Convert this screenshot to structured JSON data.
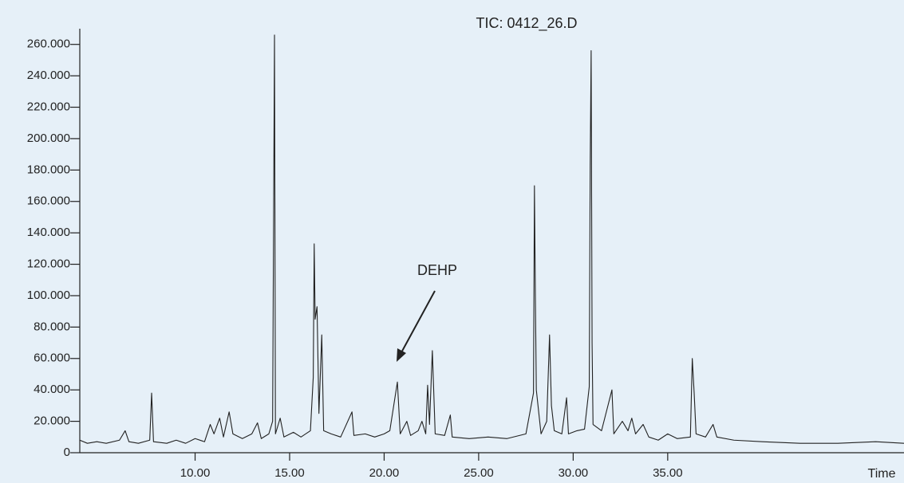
{
  "chart_data": {
    "type": "line",
    "title": "TIC: 0412_26.D",
    "xlabel": "Time",
    "annotation": "DEHP",
    "color": "#222222",
    "xlim": [
      3.9,
      47.5
    ],
    "ylim": [
      0,
      270000
    ],
    "xticks": [
      {
        "value": 10,
        "label": "10.00"
      },
      {
        "value": 15,
        "label": "15.00"
      },
      {
        "value": 20,
        "label": "20.00"
      },
      {
        "value": 25,
        "label": "25.00"
      },
      {
        "value": 30,
        "label": "30.00"
      },
      {
        "value": 35,
        "label": "35.00"
      }
    ],
    "yticks": [
      0,
      {
        "value": 20000,
        "label": "20.000"
      },
      {
        "value": 40000,
        "label": "40.000"
      },
      {
        "value": 60000,
        "label": "60.000"
      },
      {
        "value": 80000,
        "label": "80.000"
      },
      {
        "value": 100000,
        "label": "100.000"
      },
      {
        "value": 120000,
        "label": "120.000"
      },
      {
        "value": 140000,
        "label": "140.000"
      },
      {
        "value": 160000,
        "label": "160.000"
      },
      {
        "value": 180000,
        "label": "180.000"
      },
      {
        "value": 200000,
        "label": "200.000"
      },
      {
        "value": 220000,
        "label": "220.000"
      },
      {
        "value": 240000,
        "label": "240.000"
      },
      {
        "value": 260000,
        "label": "260.000"
      }
    ],
    "x": [
      3.9,
      4.3,
      4.8,
      5.3,
      6.0,
      6.3,
      6.5,
      7.0,
      7.6,
      7.7,
      7.8,
      8.5,
      9.0,
      9.5,
      10.0,
      10.5,
      10.8,
      11.0,
      11.3,
      11.5,
      11.8,
      12.0,
      12.5,
      13.0,
      13.3,
      13.5,
      13.9,
      14.1,
      14.2,
      14.25,
      14.5,
      14.7,
      15.2,
      15.6,
      16.1,
      16.25,
      16.3,
      16.35,
      16.45,
      16.55,
      16.7,
      16.8,
      17.2,
      17.7,
      18.3,
      18.4,
      19.0,
      19.5,
      20.0,
      20.3,
      20.7,
      20.85,
      21.2,
      21.4,
      21.8,
      22.0,
      22.2,
      22.3,
      22.4,
      22.55,
      22.7,
      23.2,
      23.5,
      23.6,
      24.5,
      25.5,
      26.5,
      27.5,
      27.9,
      27.95,
      28.0,
      28.05,
      28.3,
      28.6,
      28.75,
      28.85,
      29.0,
      29.4,
      29.65,
      29.75,
      30.2,
      30.6,
      30.85,
      30.9,
      30.95,
      31.0,
      31.05,
      31.5,
      32.05,
      32.15,
      32.6,
      32.9,
      33.1,
      33.3,
      33.7,
      34.0,
      34.5,
      35.0,
      35.5,
      36.2,
      36.3,
      36.4,
      36.5,
      37.0,
      37.4,
      37.6,
      38.5,
      40.0,
      42.0,
      44.0,
      46.0,
      47.5
    ],
    "values": [
      8000,
      6000,
      7000,
      6000,
      8000,
      14000,
      7000,
      6000,
      8000,
      38000,
      7000,
      6000,
      8000,
      6000,
      9000,
      7000,
      18000,
      12000,
      22000,
      10000,
      26000,
      12000,
      9000,
      12000,
      19000,
      9000,
      12000,
      20000,
      266000,
      12000,
      22000,
      10000,
      13000,
      10000,
      14000,
      48000,
      133000,
      85000,
      93000,
      25000,
      75000,
      14000,
      12000,
      10000,
      26000,
      11000,
      12000,
      10000,
      12000,
      14000,
      45000,
      12000,
      20000,
      11000,
      14000,
      20000,
      12000,
      43000,
      18000,
      65000,
      12000,
      11000,
      24000,
      10000,
      9000,
      10000,
      9000,
      12000,
      38000,
      170000,
      100000,
      40000,
      12000,
      20000,
      75000,
      30000,
      14000,
      12000,
      35000,
      12000,
      14000,
      15000,
      42000,
      183000,
      256000,
      70000,
      18000,
      14000,
      40000,
      12000,
      20000,
      14000,
      22000,
      12000,
      18000,
      10000,
      8000,
      12000,
      9000,
      10000,
      60000,
      38000,
      12000,
      10000,
      18000,
      10000,
      8000,
      7000,
      6000,
      6000,
      7000,
      6000
    ]
  }
}
